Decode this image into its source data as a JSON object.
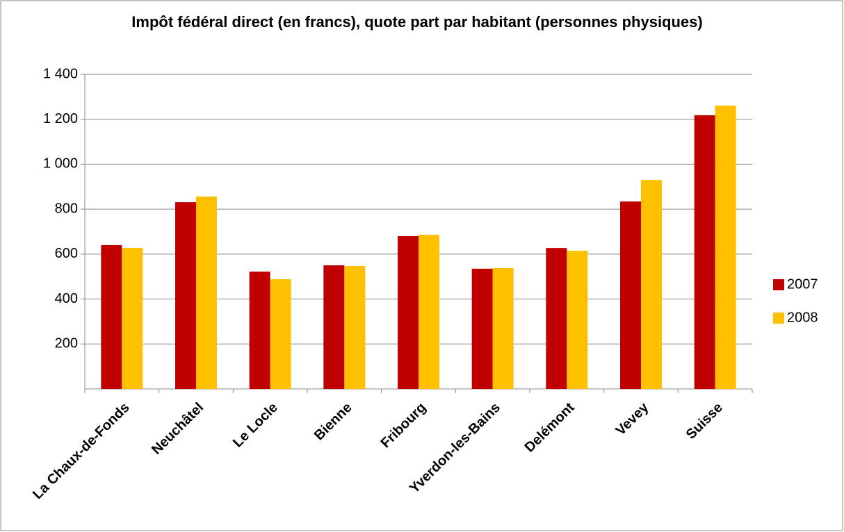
{
  "chart_data": {
    "type": "bar",
    "title": "Impôt fédéral direct (en francs), quote part par habitant (personnes physiques)",
    "categories": [
      "La Chaux-de-Fonds",
      "Neuchâtel",
      "Le Locle",
      "Bienne",
      "Fribourg",
      "Yverdon-les-Bains",
      "Delémont",
      "Vevey",
      "Suisse"
    ],
    "series": [
      {
        "name": "2007",
        "color": "#c00000",
        "values": [
          640,
          831,
          522,
          550,
          680,
          535,
          627,
          834,
          1218
        ]
      },
      {
        "name": "2008",
        "color": "#ffc000",
        "values": [
          627,
          856,
          488,
          547,
          686,
          538,
          615,
          930,
          1261
        ]
      }
    ],
    "ylim": [
      0,
      1400
    ],
    "yticks": [
      200,
      400,
      600,
      800,
      {
        "value": 1000,
        "label": "1 000"
      },
      {
        "value": 1200,
        "label": "1 200"
      },
      {
        "value": 1400,
        "label": "1 400"
      }
    ],
    "grid": true,
    "legend": "right"
  }
}
